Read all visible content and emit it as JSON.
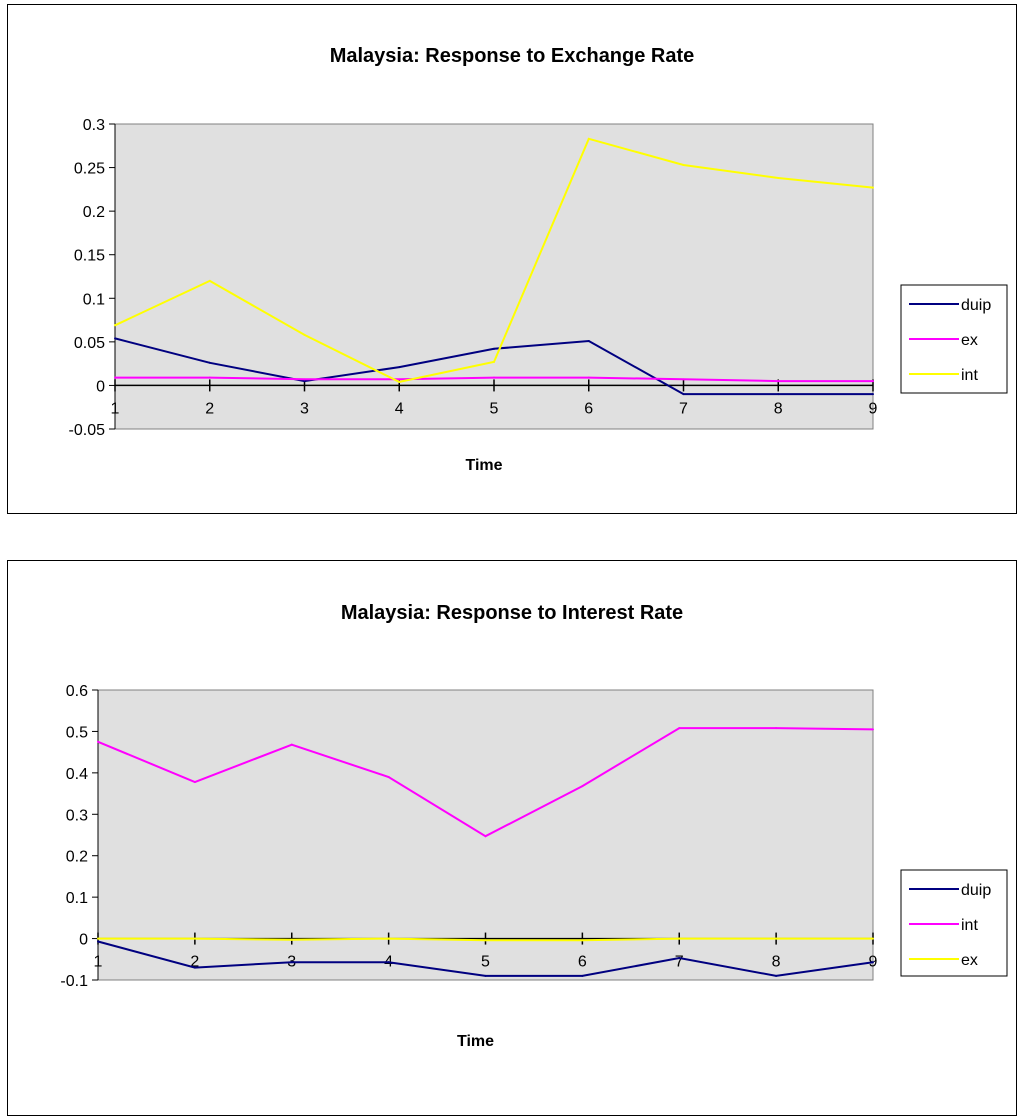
{
  "charts": [
    {
      "chart_data": {
        "type": "line",
        "title": "Malaysia: Response to Exchange Rate",
        "xlabel": "Time",
        "ylabel": "",
        "categories": [
          "1",
          "2",
          "3",
          "4",
          "5",
          "6",
          "7",
          "8",
          "9"
        ],
        "ylim": [
          -0.05,
          0.3
        ],
        "yticks": [
          0.3,
          0.25,
          0.2,
          0.15,
          0.1,
          0.05,
          0,
          -0.05
        ],
        "ytick_labels": [
          "0.3",
          "0.25",
          "0.2",
          "0.15",
          "0.1",
          "0.05",
          "0",
          "-0.05"
        ],
        "grid": false,
        "legend": "right",
        "plot_bg": "#e0e0e0",
        "series": [
          {
            "name": "duip",
            "color": "#000080",
            "values": [
              0.054,
              0.026,
              0.005,
              0.021,
              0.042,
              0.051,
              -0.01,
              -0.01,
              -0.01
            ]
          },
          {
            "name": "ex",
            "color": "#ff00ff",
            "values": [
              0.009,
              0.009,
              0.007,
              0.007,
              0.009,
              0.009,
              0.007,
              0.005,
              0.005
            ]
          },
          {
            "name": "int",
            "color": "#ffff00",
            "values": [
              0.069,
              0.12,
              0.058,
              0.004,
              0.027,
              0.283,
              0.253,
              0.238,
              0.227
            ]
          }
        ]
      }
    },
    {
      "chart_data": {
        "type": "line",
        "title": "Malaysia: Response to Interest Rate",
        "xlabel": "Time",
        "ylabel": "",
        "categories": [
          "1",
          "2",
          "3",
          "4",
          "5",
          "6",
          "7",
          "8",
          "9"
        ],
        "ylim": [
          -0.1,
          0.6
        ],
        "yticks": [
          0.6,
          0.5,
          0.4,
          0.3,
          0.2,
          0.1,
          0,
          -0.1
        ],
        "ytick_labels": [
          "0.6",
          "0.5",
          "0.4",
          "0.3",
          "0.2",
          "0.1",
          "0",
          "-0.1"
        ],
        "grid": false,
        "legend": "right",
        "plot_bg": "#e0e0e0",
        "series": [
          {
            "name": "duip",
            "color": "#000080",
            "values": [
              -0.007,
              -0.07,
              -0.057,
              -0.057,
              -0.09,
              -0.09,
              -0.047,
              -0.09,
              -0.057
            ]
          },
          {
            "name": "int",
            "color": "#ff00ff",
            "values": [
              0.475,
              0.378,
              0.468,
              0.39,
              0.247,
              0.368,
              0.508,
              0.508,
              0.505
            ]
          },
          {
            "name": "ex",
            "color": "#ffff00",
            "values": [
              0.0,
              0.0,
              -0.003,
              0.0,
              -0.004,
              -0.004,
              0.0,
              0.0,
              0.0
            ]
          }
        ]
      }
    }
  ]
}
